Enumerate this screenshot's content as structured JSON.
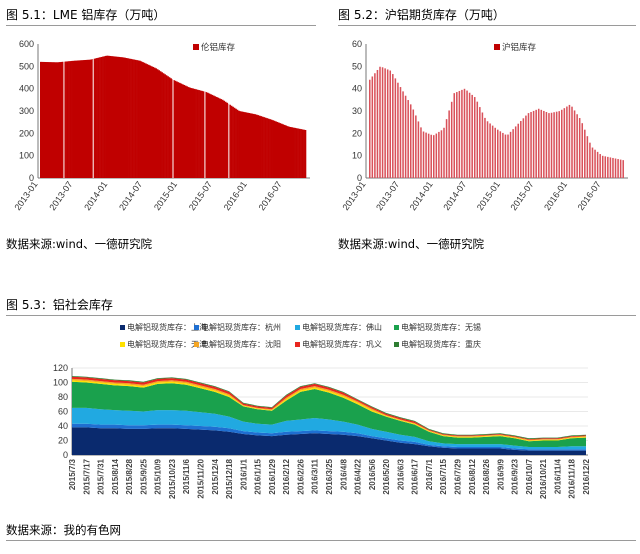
{
  "figures": [
    {
      "title": "图 5.1：LME 铝库存（万吨）",
      "source": "数据来源:wind、一德研究院"
    },
    {
      "title": "图 5.2：沪铝期货库存（万吨）",
      "source": "数据来源:wind、一德研究院"
    },
    {
      "title": "图 5.3：铝社会库存",
      "source": "数据来源：我的有色网"
    }
  ],
  "colors": {
    "red": "#c00000",
    "pink": "#e8a6a6",
    "navy": "#0a2a6e",
    "sky": "#21a9e1",
    "green": "#1aa14d",
    "yellow": "#ffe100",
    "orange": "#f5a623",
    "red2": "#e8261f",
    "dgreen": "#2e7d32"
  },
  "chart_data": [
    {
      "type": "bar",
      "title": "图 5.1：LME 铝库存（万吨）",
      "series": [
        {
          "name": "伦铝库存",
          "x": [
            "2013-01",
            "2013-04",
            "2013-07",
            "2013-10",
            "2014-01",
            "2014-04",
            "2014-07",
            "2014-10",
            "2015-01",
            "2015-04",
            "2015-07",
            "2015-10",
            "2016-01",
            "2016-04",
            "2016-07",
            "2016-10",
            "2016-12"
          ],
          "values": [
            520,
            518,
            525,
            530,
            548,
            540,
            525,
            490,
            440,
            405,
            385,
            350,
            300,
            285,
            260,
            230,
            215
          ]
        }
      ],
      "ylim": [
        0,
        600
      ],
      "yticks": [
        "0",
        "100",
        "200",
        "300",
        "400",
        "500",
        "600"
      ],
      "xticks": [
        "2013-01",
        "2013-07",
        "2014-01",
        "2014-07",
        "2015-01",
        "2015-07",
        "2016-01",
        "2016-07"
      ],
      "legend": "top-right"
    },
    {
      "type": "bar",
      "title": "图 5.2：沪铝期货库存（万吨）",
      "series": [
        {
          "name": "沪铝库存",
          "x": [
            "2013-01",
            "2013-03",
            "2013-05",
            "2013-07",
            "2013-09",
            "2013-11",
            "2014-01",
            "2014-03",
            "2014-05",
            "2014-07",
            "2014-09",
            "2014-11",
            "2015-01",
            "2015-03",
            "2015-05",
            "2015-07",
            "2015-09",
            "2015-11",
            "2016-01",
            "2016-03",
            "2016-05",
            "2016-07",
            "2016-09",
            "2016-11",
            "2016-12"
          ],
          "values": [
            44,
            50,
            48,
            40,
            32,
            21,
            19,
            22,
            38,
            40,
            36,
            26,
            22,
            19,
            24,
            29,
            31,
            29,
            30,
            33,
            26,
            14,
            10,
            9,
            8
          ]
        }
      ],
      "ylim": [
        0,
        60
      ],
      "yticks": [
        "0",
        "10",
        "20",
        "30",
        "40",
        "50",
        "60"
      ],
      "xticks": [
        "2013-01",
        "2013-07",
        "2014-01",
        "2014-07",
        "2015-01",
        "2015-07",
        "2016-01",
        "2016-07"
      ],
      "legend": "top-right"
    },
    {
      "type": "area",
      "title": "图 5.3：铝社会库存",
      "ylim": [
        0,
        120
      ],
      "yticks": [
        "0",
        "20",
        "40",
        "60",
        "80",
        "100",
        "120"
      ],
      "x": [
        "2015/7/3",
        "2015/7/17",
        "2015/7/31",
        "2015/8/14",
        "2015/8/28",
        "2015/9/25",
        "2015/10/9",
        "2015/10/23",
        "2015/11/6",
        "2015/11/20",
        "2015/12/4",
        "2015/12/18",
        "2016/1/1",
        "2016/1/15",
        "2016/1/29",
        "2016/2/12",
        "2016/2/26",
        "2016/3/11",
        "2016/3/25",
        "2016/4/8",
        "2016/4/22",
        "2016/5/6",
        "2016/5/20",
        "2016/6/3",
        "2016/6/17",
        "2016/7/1",
        "2016/7/15",
        "2016/7/29",
        "2016/8/12",
        "2016/8/26",
        "2016/9/9",
        "2016/9/23",
        "2016/10/7",
        "2016/10/21",
        "2016/11/4",
        "2016/11/18",
        "2016/12/2"
      ],
      "series": [
        {
          "name": "电解铝现货库存：上海",
          "values": [
            38,
            38,
            37,
            37,
            36,
            36,
            37,
            37,
            36,
            35,
            34,
            32,
            29,
            27,
            26,
            28,
            29,
            30,
            29,
            28,
            26,
            23,
            20,
            17,
            15,
            12,
            10,
            9,
            9,
            9,
            9,
            7,
            6,
            6,
            6,
            6,
            6
          ]
        },
        {
          "name": "电解铝现货库存：杭州",
          "values": [
            5,
            5,
            5,
            5,
            5,
            5,
            5,
            5,
            5,
            5,
            5,
            5,
            4,
            4,
            4,
            4,
            4,
            4,
            4,
            4,
            4,
            3,
            3,
            3,
            3,
            2,
            2,
            2,
            2,
            2,
            2,
            2,
            2,
            2,
            2,
            2,
            2
          ]
        },
        {
          "name": "电解铝现货库存：佛山",
          "values": [
            22,
            22,
            21,
            20,
            20,
            19,
            20,
            20,
            20,
            19,
            18,
            16,
            13,
            12,
            12,
            15,
            16,
            17,
            16,
            14,
            12,
            10,
            9,
            8,
            7,
            5,
            4,
            4,
            4,
            4,
            4,
            4,
            3,
            3,
            3,
            4,
            4
          ]
        },
        {
          "name": "电解铝现货库存：无锡",
          "values": [
            36,
            35,
            35,
            34,
            34,
            33,
            36,
            37,
            36,
            33,
            30,
            27,
            21,
            20,
            19,
            28,
            38,
            40,
            37,
            33,
            28,
            24,
            21,
            19,
            17,
            13,
            10,
            9,
            9,
            10,
            11,
            10,
            8,
            9,
            9,
            11,
            12
          ]
        },
        {
          "name": "电解铝现货库存：天津",
          "values": [
            2,
            2,
            2,
            2,
            2,
            2,
            2,
            2,
            2,
            2,
            2,
            2,
            1,
            1,
            1,
            2,
            2,
            2,
            2,
            2,
            2,
            2,
            1,
            1,
            1,
            1,
            1,
            1,
            1,
            1,
            1,
            1,
            1,
            1,
            1,
            1,
            1
          ]
        },
        {
          "name": "电解铝现货库存：沈阳",
          "values": [
            2,
            2,
            2,
            2,
            2,
            2,
            2,
            2,
            2,
            2,
            2,
            2,
            1,
            1,
            1,
            2,
            2,
            2,
            2,
            2,
            2,
            2,
            1,
            1,
            1,
            1,
            1,
            1,
            1,
            1,
            1,
            1,
            1,
            1,
            1,
            1,
            1
          ]
        },
        {
          "name": "电解铝现货库存：巩义",
          "values": [
            3,
            3,
            3,
            3,
            3,
            3,
            3,
            3,
            3,
            3,
            3,
            3,
            2,
            2,
            2,
            3,
            3,
            3,
            3,
            3,
            2,
            2,
            2,
            2,
            2,
            1,
            1,
            1,
            1,
            1,
            1,
            1,
            1,
            1,
            1,
            1,
            1
          ]
        },
        {
          "name": "电解铝现货库存：重庆",
          "values": [
            1,
            1,
            1,
            1,
            1,
            1,
            1,
            1,
            1,
            1,
            1,
            1,
            1,
            1,
            1,
            1,
            1,
            1,
            1,
            1,
            1,
            1,
            1,
            1,
            1,
            1,
            1,
            1,
            1,
            1,
            1,
            1,
            1,
            1,
            1,
            1,
            1
          ]
        }
      ],
      "legend": "top"
    }
  ]
}
